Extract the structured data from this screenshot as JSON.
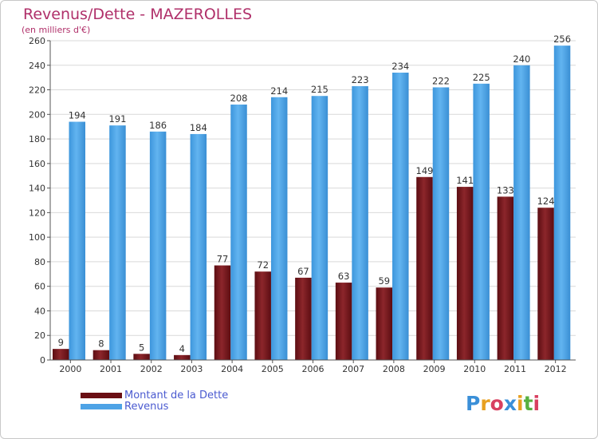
{
  "chart_data": {
    "type": "bar",
    "title": "Revenus/Dette - MAZEROLLES",
    "subtitle": "(en milliers d'€)",
    "categories": [
      "2000",
      "2001",
      "2002",
      "2003",
      "2004",
      "2005",
      "2006",
      "2007",
      "2008",
      "2009",
      "2010",
      "2011",
      "2012"
    ],
    "series": [
      {
        "name": "Montant de la Dette",
        "color": "#7a1a1e",
        "values": [
          9,
          8,
          5,
          4,
          77,
          72,
          67,
          63,
          59,
          149,
          141,
          133,
          124
        ]
      },
      {
        "name": "Revenus",
        "color": "#4ea3e6",
        "values": [
          194,
          191,
          186,
          184,
          208,
          214,
          215,
          223,
          234,
          222,
          225,
          240,
          256
        ]
      }
    ],
    "ylim": [
      0,
      260
    ],
    "yticks": [
      0,
      20,
      40,
      60,
      80,
      100,
      120,
      140,
      160,
      180,
      200,
      220,
      240,
      260
    ],
    "grid": true,
    "legend_position": "bottom-left"
  },
  "logo": {
    "letters": [
      {
        "ch": "P",
        "color": "#3a8fd8"
      },
      {
        "ch": "r",
        "color": "#e8a020"
      },
      {
        "ch": "o",
        "color": "#d84060"
      },
      {
        "ch": "x",
        "color": "#3a8fd8"
      },
      {
        "ch": "i",
        "color": "#e8a020"
      },
      {
        "ch": "t",
        "color": "#58b040"
      },
      {
        "ch": "i",
        "color": "#d84060"
      }
    ]
  }
}
